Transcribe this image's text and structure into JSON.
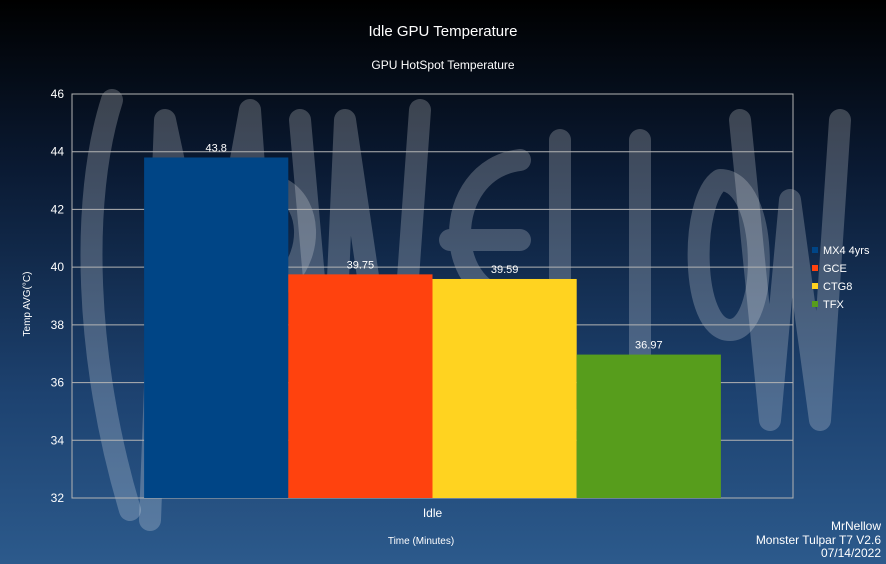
{
  "chart_data": {
    "type": "bar",
    "title": "Idle GPU Temperature",
    "subtitle": "GPU HotSpot Temperature",
    "xlabel": "Time (Minutes)",
    "ylabel": "Temp AVG(°C)",
    "categories": [
      "Idle"
    ],
    "ylim": [
      32,
      46
    ],
    "yticks": [
      32,
      34,
      36,
      38,
      40,
      42,
      44,
      46
    ],
    "grid": true,
    "legend_position": "right",
    "series": [
      {
        "name": "MX4 4yrs",
        "values": [
          43.8
        ],
        "label": "43.8",
        "color": "#004586"
      },
      {
        "name": "GCE",
        "values": [
          39.75
        ],
        "label": "39.75",
        "color": "#ff420e"
      },
      {
        "name": "CTG8",
        "values": [
          39.59
        ],
        "label": "39.59",
        "color": "#ffd320"
      },
      {
        "name": "TFX",
        "values": [
          36.97
        ],
        "label": "36.97",
        "color": "#579d1c"
      }
    ]
  },
  "footer": {
    "line1": "MrNellow",
    "line2": "Monster Tulpar T7 V2.6",
    "line3": "07/14/2022"
  },
  "watermark_text": "MrNellow",
  "colors": {
    "grid": "#b3b3b3",
    "axis_text": "#ffffff"
  }
}
